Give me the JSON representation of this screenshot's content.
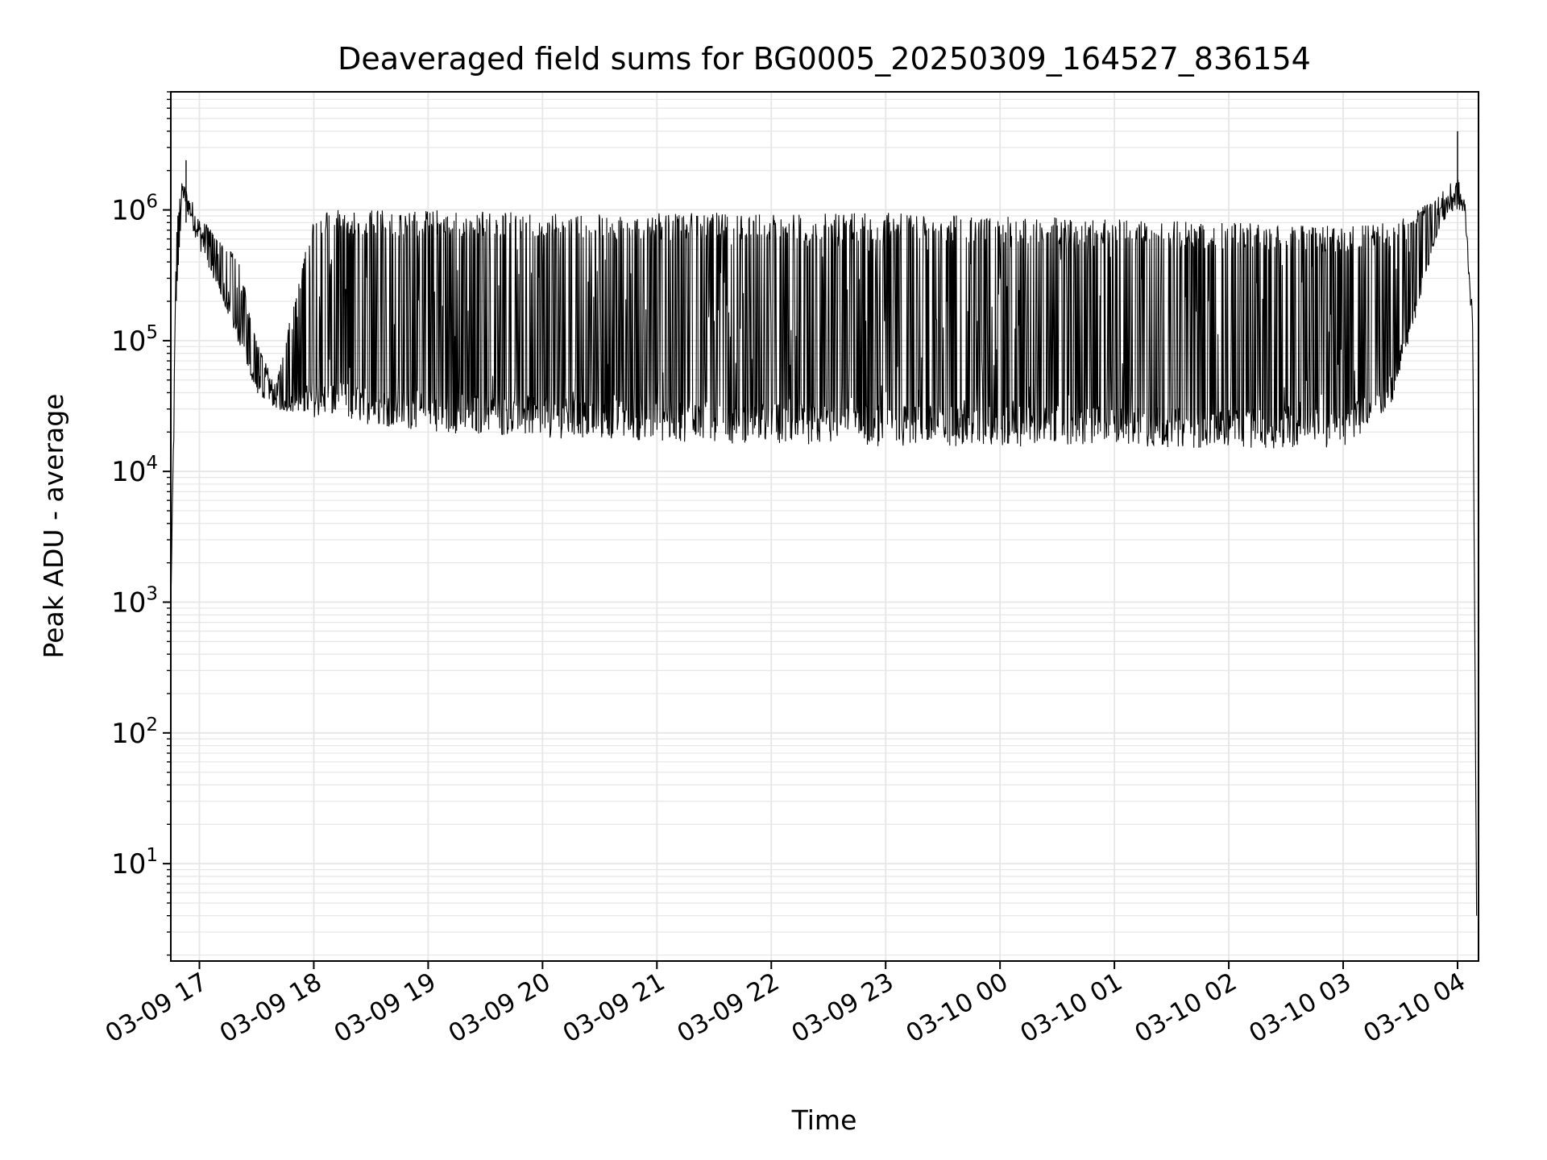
{
  "chart_data": {
    "type": "line",
    "title": "Deaveraged field sums for BG0005_20250309_164527_836154",
    "xlabel": "Time",
    "ylabel": "Peak ADU - average",
    "yscale": "log",
    "ylim": [
      1.8,
      8000000
    ],
    "xlim": [
      "2025-03-09 16:45",
      "2025-03-10 04:11"
    ],
    "grid": true,
    "colors": {
      "line": "#000000",
      "grid": "#e6e6e6"
    },
    "x_ticks": [
      {
        "value": "2025-03-09 17:00",
        "label": "03-09 17"
      },
      {
        "value": "2025-03-09 18:00",
        "label": "03-09 18"
      },
      {
        "value": "2025-03-09 19:00",
        "label": "03-09 19"
      },
      {
        "value": "2025-03-09 20:00",
        "label": "03-09 20"
      },
      {
        "value": "2025-03-09 21:00",
        "label": "03-09 21"
      },
      {
        "value": "2025-03-09 22:00",
        "label": "03-09 22"
      },
      {
        "value": "2025-03-09 23:00",
        "label": "03-09 23"
      },
      {
        "value": "2025-03-10 00:00",
        "label": "03-10 00"
      },
      {
        "value": "2025-03-10 01:00",
        "label": "03-10 01"
      },
      {
        "value": "2025-03-10 02:00",
        "label": "03-10 02"
      },
      {
        "value": "2025-03-10 03:00",
        "label": "03-10 03"
      },
      {
        "value": "2025-03-10 04:00",
        "label": "03-10 04"
      }
    ],
    "y_ticks": [
      {
        "value": 10,
        "base": "10",
        "exp": "1"
      },
      {
        "value": 100,
        "base": "10",
        "exp": "2"
      },
      {
        "value": 1000,
        "base": "10",
        "exp": "3"
      },
      {
        "value": 10000,
        "base": "10",
        "exp": "4"
      },
      {
        "value": 100000,
        "base": "10",
        "exp": "5"
      },
      {
        "value": 1000000,
        "base": "10",
        "exp": "6"
      }
    ],
    "envelope": {
      "description_points": "x = timestamp, low = lower bound of the oscillating signal, high = upper bound (Peak ADU - average)",
      "points": [
        {
          "x": "2025-03-09 16:45",
          "low": 900,
          "high": 900
        },
        {
          "x": "2025-03-09 16:48",
          "low": 200000,
          "high": 800000
        },
        {
          "x": "2025-03-09 16:51",
          "low": 1200000,
          "high": 1700000
        },
        {
          "x": "2025-03-09 16:54",
          "low": 900000,
          "high": 1400000
        },
        {
          "x": "2025-03-09 17:00",
          "low": 500000,
          "high": 900000
        },
        {
          "x": "2025-03-09 17:10",
          "low": 250000,
          "high": 600000
        },
        {
          "x": "2025-03-09 17:20",
          "low": 100000,
          "high": 450000
        },
        {
          "x": "2025-03-09 17:30",
          "low": 40000,
          "high": 100000
        },
        {
          "x": "2025-03-09 17:40",
          "low": 30000,
          "high": 45000
        },
        {
          "x": "2025-03-09 18:00",
          "low": 26000,
          "high": 1000000
        },
        {
          "x": "2025-03-09 19:00",
          "low": 20000,
          "high": 1000000
        },
        {
          "x": "2025-03-09 20:00",
          "low": 18000,
          "high": 950000
        },
        {
          "x": "2025-03-09 21:00",
          "low": 17000,
          "high": 950000
        },
        {
          "x": "2025-03-09 22:00",
          "low": 16000,
          "high": 950000
        },
        {
          "x": "2025-03-09 23:00",
          "low": 15500,
          "high": 950000
        },
        {
          "x": "2025-03-10 00:00",
          "low": 15500,
          "high": 900000
        },
        {
          "x": "2025-03-10 01:00",
          "low": 15500,
          "high": 850000
        },
        {
          "x": "2025-03-10 02:00",
          "low": 15000,
          "high": 800000
        },
        {
          "x": "2025-03-10 03:00",
          "low": 15000,
          "high": 750000
        },
        {
          "x": "2025-03-10 03:25",
          "low": 30000,
          "high": 800000
        },
        {
          "x": "2025-03-10 03:35",
          "low": 100000,
          "high": 900000
        },
        {
          "x": "2025-03-10 03:50",
          "low": 700000,
          "high": 1300000
        },
        {
          "x": "2025-03-10 04:00",
          "low": 1000000,
          "high": 1800000
        },
        {
          "x": "2025-03-10 04:04",
          "low": 800000,
          "high": 1200000
        },
        {
          "x": "2025-03-10 04:08",
          "low": 100000,
          "high": 150000
        },
        {
          "x": "2025-03-10 04:10",
          "low": 4,
          "high": 4
        }
      ]
    },
    "spikes": [
      {
        "x": "2025-03-09 16:53",
        "value": 2400000
      },
      {
        "x": "2025-03-10 04:00",
        "value": 4000000
      }
    ]
  }
}
